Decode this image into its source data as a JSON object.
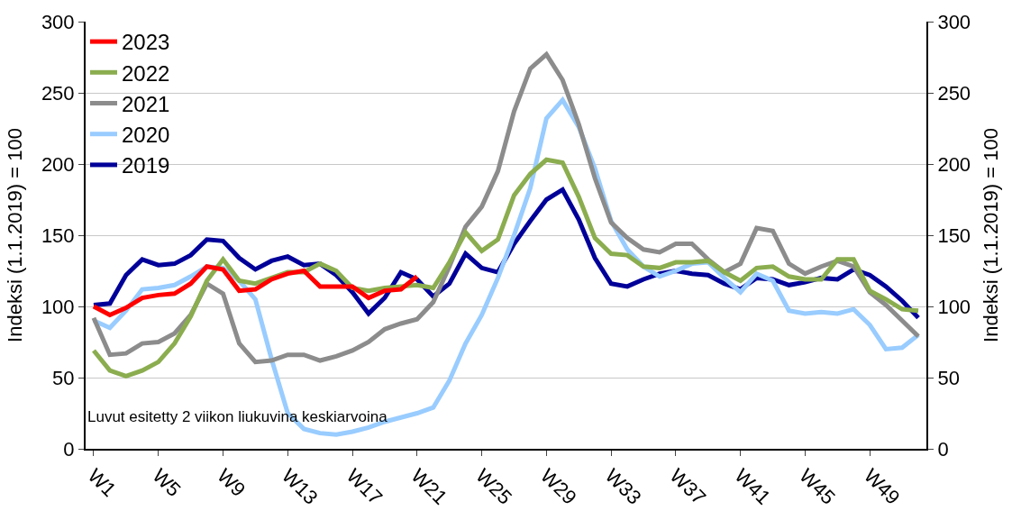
{
  "chart_data": {
    "type": "line",
    "categories": [
      "W1",
      null,
      null,
      null,
      "W5",
      null,
      null,
      null,
      "W9",
      null,
      null,
      null,
      "W13",
      null,
      null,
      null,
      "W17",
      null,
      null,
      null,
      "W21",
      null,
      null,
      null,
      "W25",
      null,
      null,
      null,
      "W29",
      null,
      null,
      null,
      "W33",
      null,
      null,
      null,
      "W37",
      null,
      null,
      null,
      "W41",
      null,
      null,
      null,
      "W45",
      null,
      null,
      null,
      "W49",
      null,
      null,
      null
    ],
    "series": [
      {
        "name": "2023",
        "color": "#ff0000",
        "values": [
          100,
          94,
          99,
          106,
          108,
          109,
          116,
          128,
          126,
          111,
          112,
          119,
          123,
          125,
          114,
          114,
          114,
          106,
          111,
          112,
          121,
          null,
          null,
          null,
          null,
          null,
          null,
          null,
          null,
          null,
          null,
          null,
          null,
          null,
          null,
          null,
          null,
          null,
          null,
          null,
          null,
          null,
          null,
          null,
          null,
          null,
          null,
          null,
          null,
          null,
          null,
          null
        ]
      },
      {
        "name": "2022",
        "color": "#8bad4f",
        "values": [
          69,
          55,
          51,
          55,
          61,
          74,
          93,
          118,
          133,
          118,
          116,
          120,
          124,
          124,
          130,
          125,
          113,
          111,
          113,
          114,
          115,
          113,
          131,
          152,
          139,
          147,
          178,
          193,
          203,
          201,
          177,
          148,
          137,
          136,
          128,
          127,
          131,
          131,
          132,
          124,
          118,
          127,
          128,
          121,
          119,
          119,
          133,
          133,
          111,
          105,
          98,
          97
        ]
      },
      {
        "name": "2021",
        "color": "#8c8c8c",
        "values": [
          92,
          66,
          67,
          74,
          75,
          81,
          94,
          116,
          109,
          74,
          61,
          62,
          66,
          66,
          62,
          65,
          69,
          75,
          84,
          88,
          91,
          103,
          128,
          156,
          170,
          195,
          237,
          267,
          277,
          259,
          228,
          190,
          159,
          148,
          140,
          138,
          144,
          144,
          133,
          124,
          130,
          155,
          153,
          130,
          123,
          128,
          132,
          128,
          110,
          101,
          90,
          79
        ]
      },
      {
        "name": "2020",
        "color": "#99ccff",
        "values": [
          90,
          85,
          97,
          112,
          113,
          115,
          121,
          128,
          127,
          118,
          105,
          63,
          25,
          14,
          11,
          10,
          12,
          15,
          19,
          22,
          25,
          29,
          48,
          74,
          94,
          120,
          150,
          183,
          232,
          245,
          226,
          197,
          160,
          140,
          128,
          121,
          125,
          130,
          131,
          120,
          110,
          123,
          118,
          97,
          95,
          96,
          95,
          98,
          87,
          70,
          71,
          80
        ]
      },
      {
        "name": "2019",
        "color": "#000099",
        "values": [
          101,
          102,
          122,
          133,
          129,
          130,
          136,
          147,
          146,
          134,
          126,
          132,
          135,
          129,
          130,
          122,
          110,
          95,
          106,
          124,
          119,
          107,
          116,
          137,
          127,
          124,
          144,
          160,
          175,
          182,
          161,
          134,
          116,
          114,
          119,
          123,
          125,
          123,
          122,
          116,
          112,
          120,
          119,
          115,
          117,
          120,
          119,
          126,
          122,
          114,
          104,
          92
        ]
      }
    ],
    "ylabel": "Indeksi (1.1.2019) = 100",
    "y2label": "Indeksi (1.1.2019) = 100",
    "ylim": [
      0,
      300
    ],
    "yticks": [
      0,
      50,
      100,
      150,
      200,
      250,
      300
    ],
    "y2lim": [
      0,
      300
    ],
    "y2ticks": [
      0,
      50,
      100,
      150,
      200,
      250,
      300
    ],
    "annotations": [
      "Luvut esitetty 2 viikon liukuvina keskiarvoina"
    ],
    "grid": "y",
    "legend": "top left",
    "marker": "none",
    "line_style": "solid"
  }
}
